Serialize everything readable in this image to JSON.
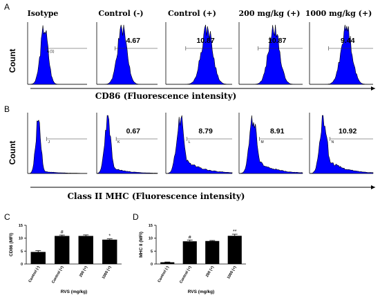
{
  "panel_labels": {
    "a": "A",
    "b": "B",
    "c": "C",
    "d": "D"
  },
  "column_headers": [
    "Isotype",
    "Control (-)",
    "Control (+)",
    "200 mg/kg (+)",
    "1000 mg/kg (+)"
  ],
  "row_a": {
    "y_label": "Count",
    "x_label": "CD86 (Fluorescence intensity)",
    "values": [
      "",
      "4.67",
      "10.87",
      "10.87",
      "9.44"
    ],
    "gate_labels": [
      "A (1)",
      "",
      "",
      "",
      ""
    ]
  },
  "row_b": {
    "y_label": "Count",
    "x_label": "Class II MHC (Fluorescence intensity)",
    "values": [
      "",
      "0.67",
      "8.79",
      "8.91",
      "10.92"
    ],
    "gate_labels": [
      "J",
      "K",
      "L",
      "M",
      "N"
    ]
  },
  "colors": {
    "histogram_fill": "#0000ff",
    "histogram_outline": "#000000",
    "bar_fill": "#000000"
  },
  "chart_data": [
    {
      "type": "bar",
      "panel": "C",
      "categories": [
        "Control (-)",
        "Control (+)",
        "200 (+)",
        "1000 (+)"
      ],
      "values": [
        4.67,
        10.87,
        10.87,
        9.44
      ],
      "errors": [
        0.5,
        0.35,
        0.4,
        0.3
      ],
      "markers": [
        "",
        "#",
        "",
        "*"
      ],
      "ylabel": "CD86 (MFI)",
      "xlabel": "RVS (mg/kg)",
      "ylim": [
        0,
        15
      ],
      "yticks": [
        0,
        5,
        10,
        15
      ]
    },
    {
      "type": "bar",
      "panel": "D",
      "categories": [
        "Control (-)",
        "Control (+)",
        "200 (+)",
        "1000 (+)"
      ],
      "values": [
        0.67,
        8.79,
        8.91,
        10.92
      ],
      "errors": [
        0.1,
        0.5,
        0.2,
        0.6
      ],
      "markers": [
        "",
        "#",
        "",
        "**"
      ],
      "ylabel": "MHC II (MFI)",
      "xlabel": "RVS (mg/kg)",
      "ylim": [
        0,
        15
      ],
      "yticks": [
        0,
        5,
        10,
        15
      ]
    }
  ]
}
